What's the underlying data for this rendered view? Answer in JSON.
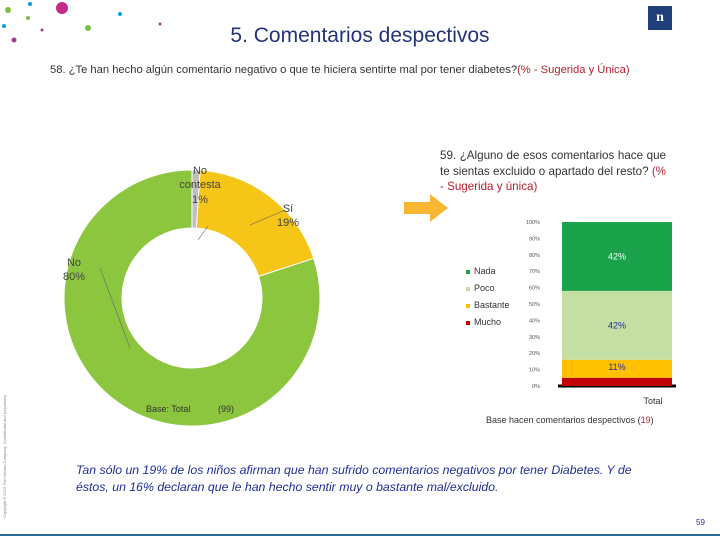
{
  "header": {
    "title": "5. Comentarios despectivos",
    "logo_text": "n",
    "question_58": "58. ¿Te han hecho algún comentario negativo o que te hiciera sentirte mal por tener diabetes?",
    "question_58_tag": "(% - Sugerida y Única)"
  },
  "pie": {
    "labels": {
      "no_contesta": [
        "No",
        "contesta",
        "1%"
      ],
      "si": [
        "Sí",
        "19%"
      ],
      "no": [
        "No",
        "80%"
      ]
    },
    "base_label": "Base: Total",
    "base_n": "(99)"
  },
  "question_59": {
    "text": "59. ¿Alguno de esos comentarios hace que te sientas excluido o apartado del resto?",
    "tag": "(% - Sugerida y única)"
  },
  "bar": {
    "base_label": "Base hacen comentarios despectivos",
    "base_n": "19"
  },
  "summary": "Tan sólo un 19% de los niños afirman que han sufrido comentarios negativos por tener Diabetes. Y de éstos, un 16% declaran que le han hecho sentir muy o bastante mal/excluido.",
  "footer": {
    "copyright": "Copyright © 2015 The Nielsen Company. Confidential and proprietary.",
    "page": "59"
  },
  "chart_data": [
    {
      "type": "pie",
      "donut": true,
      "slices": [
        {
          "label": "Sí",
          "value": 19,
          "color": "#f5c518"
        },
        {
          "label": "No",
          "value": 80,
          "color": "#8cc63f"
        },
        {
          "label": "No contesta",
          "value": 1,
          "color": "#bfbfbf"
        }
      ]
    },
    {
      "type": "bar",
      "stacked": true,
      "categories": [
        "Total"
      ],
      "ylim": [
        0,
        100
      ],
      "yticks": [
        "0%",
        "10%",
        "20%",
        "30%",
        "40%",
        "50%",
        "60%",
        "70%",
        "80%",
        "90%",
        "100%"
      ],
      "legend_position": "left",
      "series": [
        {
          "name": "Mucho",
          "values": [
            5
          ],
          "label": "5%",
          "color": "#c00000"
        },
        {
          "name": "Bastante",
          "values": [
            11
          ],
          "label": "11%",
          "color": "#ffc000"
        },
        {
          "name": "Poco",
          "values": [
            42
          ],
          "label": "42%",
          "color": "#c4dfa1"
        },
        {
          "name": "Nada",
          "values": [
            42
          ],
          "label": "42%",
          "color": "#1aa34a"
        }
      ]
    }
  ]
}
